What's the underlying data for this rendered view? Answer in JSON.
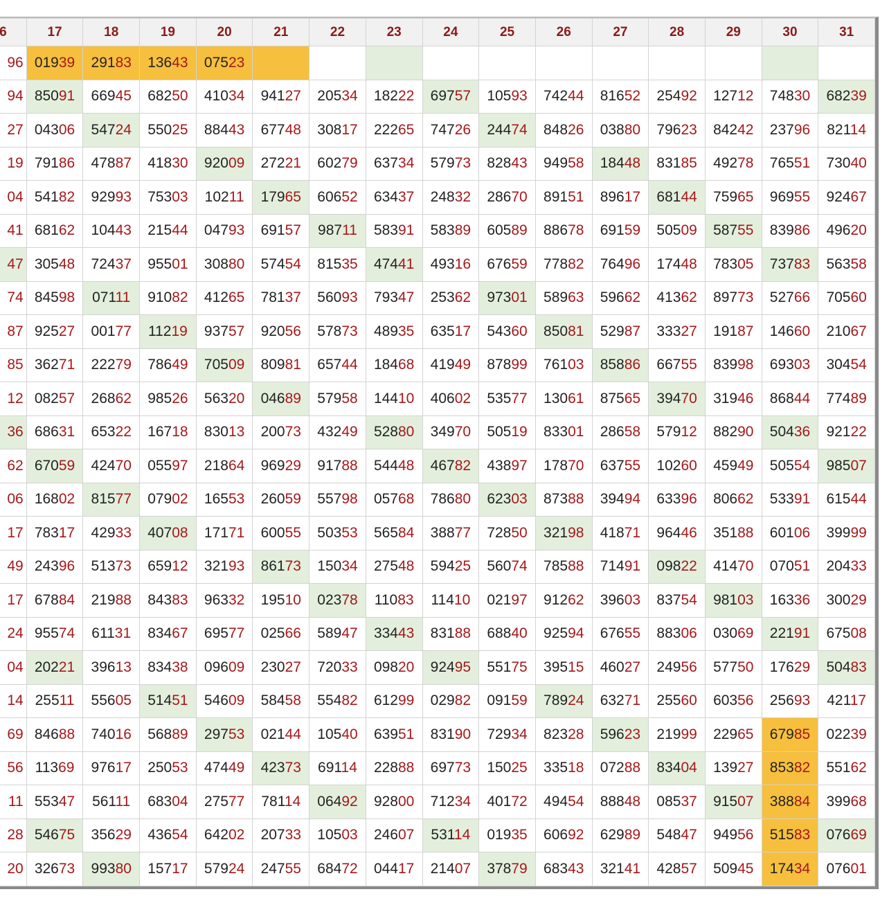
{
  "table": {
    "header": [
      "6",
      "17",
      "18",
      "19",
      "20",
      "21",
      "22",
      "23",
      "24",
      "25",
      "26",
      "27",
      "28",
      "29",
      "30",
      "31"
    ],
    "rows": [
      [
        "96",
        "01939",
        "29183",
        "13643",
        "07523",
        "",
        "",
        "",
        "",
        "",
        "",
        "",
        "",
        "",
        "",
        ""
      ],
      [
        "94",
        "85091",
        "66945",
        "68250",
        "41034",
        "94127",
        "20534",
        "18222",
        "69757",
        "10593",
        "74244",
        "81652",
        "25492",
        "12712",
        "74830",
        "68239"
      ],
      [
        "27",
        "04306",
        "54724",
        "55025",
        "88443",
        "67748",
        "30817",
        "22265",
        "74726",
        "24474",
        "84826",
        "03880",
        "79623",
        "84242",
        "23796",
        "82114"
      ],
      [
        "19",
        "79186",
        "47887",
        "41830",
        "92009",
        "27221",
        "60279",
        "63734",
        "57973",
        "82843",
        "94958",
        "18448",
        "83185",
        "49278",
        "76551",
        "73040"
      ],
      [
        "04",
        "54182",
        "92993",
        "75303",
        "10211",
        "17965",
        "60652",
        "63437",
        "24832",
        "28670",
        "89151",
        "89617",
        "68144",
        "75965",
        "96955",
        "92467"
      ],
      [
        "41",
        "68162",
        "10443",
        "21544",
        "04793",
        "69157",
        "98711",
        "58391",
        "58389",
        "60589",
        "88678",
        "69159",
        "50509",
        "58755",
        "83986",
        "49620"
      ],
      [
        "47",
        "30548",
        "72437",
        "95501",
        "30880",
        "57454",
        "81535",
        "47441",
        "49316",
        "67659",
        "77882",
        "76496",
        "17448",
        "78305",
        "73783",
        "56358"
      ],
      [
        "74",
        "84598",
        "07111",
        "91082",
        "41265",
        "78137",
        "56093",
        "79347",
        "25362",
        "97301",
        "58963",
        "59662",
        "41362",
        "89773",
        "52766",
        "70560"
      ],
      [
        "87",
        "92527",
        "00177",
        "11219",
        "93757",
        "92056",
        "57873",
        "48935",
        "63517",
        "54360",
        "85081",
        "52987",
        "33327",
        "19187",
        "14660",
        "21067"
      ],
      [
        "85",
        "36271",
        "22279",
        "78649",
        "70509",
        "80981",
        "65744",
        "18468",
        "41949",
        "87899",
        "76103",
        "85886",
        "66755",
        "83998",
        "69303",
        "30454"
      ],
      [
        "12",
        "08257",
        "26862",
        "98526",
        "56320",
        "04689",
        "57958",
        "14410",
        "40602",
        "53577",
        "13061",
        "87565",
        "39470",
        "31946",
        "86844",
        "77489"
      ],
      [
        "36",
        "68631",
        "65322",
        "16718",
        "83013",
        "20073",
        "43249",
        "52880",
        "34970",
        "50519",
        "83301",
        "28658",
        "57912",
        "88290",
        "50436",
        "92122"
      ],
      [
        "62",
        "67059",
        "42470",
        "05597",
        "21864",
        "96929",
        "91788",
        "54448",
        "46782",
        "43897",
        "17870",
        "63755",
        "10260",
        "45949",
        "50554",
        "98507"
      ],
      [
        "06",
        "16802",
        "81577",
        "07902",
        "16553",
        "26059",
        "55798",
        "05768",
        "78680",
        "62303",
        "87388",
        "39494",
        "63396",
        "80662",
        "53391",
        "61544"
      ],
      [
        "17",
        "78317",
        "42933",
        "40708",
        "17171",
        "60055",
        "50353",
        "56584",
        "38877",
        "72850",
        "32198",
        "41871",
        "96446",
        "35188",
        "60106",
        "39999"
      ],
      [
        "49",
        "24396",
        "51373",
        "65912",
        "32193",
        "86173",
        "15034",
        "27548",
        "59425",
        "56074",
        "78588",
        "71491",
        "09822",
        "41470",
        "07051",
        "20433"
      ],
      [
        "17",
        "67884",
        "21988",
        "84383",
        "96332",
        "19510",
        "02378",
        "11083",
        "11410",
        "02197",
        "91262",
        "39603",
        "83754",
        "98103",
        "16336",
        "30029"
      ],
      [
        "24",
        "95574",
        "61131",
        "83467",
        "69577",
        "02566",
        "58947",
        "33443",
        "83188",
        "68840",
        "92594",
        "67655",
        "88306",
        "03069",
        "22191",
        "67508"
      ],
      [
        "04",
        "20221",
        "39613",
        "83438",
        "09609",
        "23027",
        "72033",
        "09820",
        "92495",
        "55175",
        "39515",
        "46027",
        "24956",
        "57750",
        "17629",
        "50483"
      ],
      [
        "14",
        "25511",
        "55605",
        "51451",
        "54609",
        "58458",
        "55482",
        "61299",
        "02982",
        "09159",
        "78924",
        "63271",
        "25560",
        "60356",
        "25693",
        "42117"
      ],
      [
        "69",
        "84688",
        "74016",
        "56889",
        "29753",
        "02144",
        "10540",
        "63951",
        "83190",
        "72934",
        "82328",
        "59623",
        "21999",
        "22965",
        "67985",
        "02239"
      ],
      [
        "56",
        "11369",
        "97617",
        "25053",
        "47449",
        "42373",
        "69114",
        "22888",
        "69773",
        "15025",
        "33518",
        "07288",
        "83404",
        "13927",
        "85382",
        "55162"
      ],
      [
        "11",
        "55347",
        "56111",
        "68304",
        "27577",
        "78114",
        "06492",
        "92800",
        "71234",
        "40172",
        "49454",
        "88848",
        "08537",
        "91507",
        "38884",
        "39968"
      ],
      [
        "28",
        "54675",
        "35629",
        "43654",
        "64202",
        "20733",
        "10503",
        "24607",
        "53114",
        "01935",
        "60692",
        "62989",
        "54847",
        "94956",
        "51583",
        "07669"
      ],
      [
        "20",
        "32673",
        "99380",
        "15717",
        "57924",
        "24755",
        "68472",
        "04417",
        "21407",
        "37879",
        "68343",
        "32141",
        "42857",
        "50945",
        "17434",
        "07601"
      ]
    ],
    "fills": [
      [
        null,
        "#f6bf3d",
        "#f6bf3d",
        "#f6bf3d",
        "#f6bf3d",
        "#f6bf3d",
        null,
        "#e3efdc",
        null,
        null,
        null,
        null,
        null,
        null,
        "#e3efdc",
        null
      ],
      [
        null,
        "#e3efdc",
        null,
        null,
        null,
        null,
        null,
        null,
        "#e3efdc",
        null,
        null,
        null,
        null,
        null,
        null,
        "#e3efdc"
      ],
      [
        null,
        null,
        "#e3efdc",
        null,
        null,
        null,
        null,
        null,
        null,
        "#e3efdc",
        null,
        null,
        null,
        null,
        null,
        null
      ],
      [
        null,
        null,
        null,
        null,
        "#e3efdc",
        null,
        null,
        null,
        null,
        null,
        null,
        "#e3efdc",
        null,
        null,
        null,
        null
      ],
      [
        null,
        null,
        null,
        null,
        null,
        "#e3efdc",
        null,
        null,
        null,
        null,
        null,
        null,
        "#e3efdc",
        null,
        null,
        null
      ],
      [
        null,
        null,
        null,
        null,
        null,
        null,
        "#e3efdc",
        null,
        null,
        null,
        null,
        null,
        null,
        "#e3efdc",
        null,
        null
      ],
      [
        "#e3efdc",
        null,
        null,
        null,
        null,
        null,
        null,
        "#e3efdc",
        null,
        null,
        null,
        null,
        null,
        null,
        "#e3efdc",
        null
      ],
      [
        null,
        null,
        "#e3efdc",
        null,
        null,
        null,
        null,
        null,
        null,
        "#e3efdc",
        null,
        null,
        null,
        null,
        null,
        null
      ],
      [
        null,
        null,
        null,
        "#e3efdc",
        null,
        null,
        null,
        null,
        null,
        null,
        "#e3efdc",
        null,
        null,
        null,
        null,
        null
      ],
      [
        null,
        null,
        null,
        null,
        "#e3efdc",
        null,
        null,
        null,
        null,
        null,
        null,
        "#e3efdc",
        null,
        null,
        null,
        null
      ],
      [
        null,
        null,
        null,
        null,
        null,
        "#e3efdc",
        null,
        null,
        null,
        null,
        null,
        null,
        "#e3efdc",
        null,
        null,
        null
      ],
      [
        "#e3efdc",
        null,
        null,
        null,
        null,
        null,
        null,
        "#e3efdc",
        null,
        null,
        null,
        null,
        null,
        null,
        "#e3efdc",
        null
      ],
      [
        null,
        "#e3efdc",
        null,
        null,
        null,
        null,
        null,
        null,
        "#e3efdc",
        null,
        null,
        null,
        null,
        null,
        null,
        "#e3efdc"
      ],
      [
        null,
        null,
        "#e3efdc",
        null,
        null,
        null,
        null,
        null,
        null,
        "#e3efdc",
        null,
        null,
        null,
        null,
        null,
        null
      ],
      [
        null,
        null,
        null,
        "#e3efdc",
        null,
        null,
        null,
        null,
        null,
        null,
        "#e3efdc",
        null,
        null,
        null,
        null,
        null
      ],
      [
        null,
        null,
        null,
        null,
        null,
        "#e3efdc",
        null,
        null,
        null,
        null,
        null,
        null,
        "#e3efdc",
        null,
        null,
        null
      ],
      [
        null,
        null,
        null,
        null,
        null,
        null,
        "#e3efdc",
        null,
        null,
        null,
        null,
        null,
        null,
        "#e3efdc",
        null,
        null
      ],
      [
        null,
        null,
        null,
        null,
        null,
        null,
        null,
        "#e3efdc",
        null,
        null,
        null,
        null,
        null,
        null,
        "#e3efdc",
        null
      ],
      [
        null,
        "#e3efdc",
        null,
        null,
        null,
        null,
        null,
        null,
        "#e3efdc",
        null,
        null,
        null,
        null,
        null,
        null,
        "#e3efdc"
      ],
      [
        null,
        null,
        null,
        "#e3efdc",
        null,
        null,
        null,
        null,
        null,
        null,
        "#e3efdc",
        null,
        null,
        null,
        null,
        null
      ],
      [
        null,
        null,
        null,
        null,
        "#e3efdc",
        null,
        null,
        null,
        null,
        null,
        null,
        "#e3efdc",
        null,
        null,
        "#f6bf3d",
        null
      ],
      [
        null,
        null,
        null,
        null,
        null,
        "#e3efdc",
        null,
        null,
        null,
        null,
        null,
        null,
        "#e3efdc",
        null,
        "#f6bf3d",
        null
      ],
      [
        null,
        null,
        null,
        null,
        null,
        null,
        "#e3efdc",
        null,
        null,
        null,
        null,
        null,
        null,
        "#e3efdc",
        "#f6bf3d",
        null
      ],
      [
        null,
        "#e3efdc",
        null,
        null,
        null,
        null,
        null,
        null,
        "#e3efdc",
        null,
        null,
        null,
        null,
        null,
        "#f6bf3d",
        "#e3efdc"
      ],
      [
        null,
        null,
        "#e3efdc",
        null,
        null,
        null,
        null,
        null,
        null,
        "#e3efdc",
        null,
        null,
        null,
        null,
        "#f6bf3d",
        null
      ]
    ]
  }
}
